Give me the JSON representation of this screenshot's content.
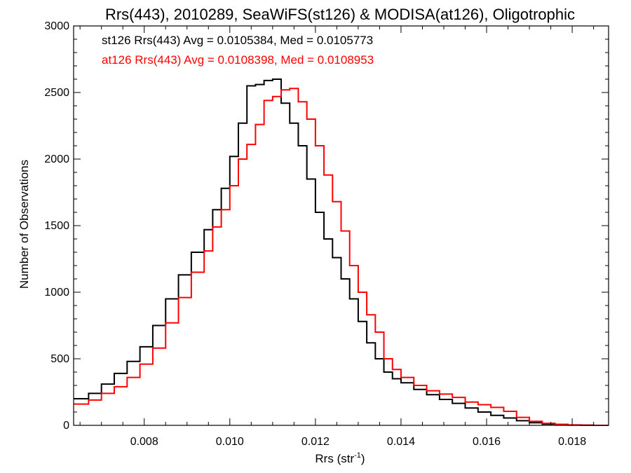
{
  "chart_data": {
    "type": "line",
    "title": "Rrs(443), 2010289, SeaWiFS(st126) & MODISA(at126), Oligotrophic",
    "xlabel": "Rrs (str",
    "xlabel_sup": "-1",
    "xlabel_end": ")",
    "ylabel": "Number of Observations",
    "xlim": [
      0.00635,
      0.01885
    ],
    "ylim": [
      0,
      3000
    ],
    "xticks": [
      0.008,
      0.01,
      0.012,
      0.014,
      0.016,
      0.018
    ],
    "xtick_labels": [
      "0.008",
      "0.010",
      "0.012",
      "0.014",
      "0.016",
      "0.018"
    ],
    "yticks": [
      0,
      500,
      1000,
      1500,
      2000,
      2500,
      3000
    ],
    "ytick_labels": [
      "0",
      "500",
      "1000",
      "1500",
      "2000",
      "2500",
      "3000"
    ],
    "grid": false,
    "step": true,
    "annotations": [
      {
        "text": "st126 Rrs(443) Avg = 0.0105384, Med = 0.0105773",
        "color": "#000000"
      },
      {
        "text": "at126 Rrs(443) Avg = 0.0108398, Med = 0.0108953",
        "color": "#ff0000"
      }
    ],
    "series": [
      {
        "color": "#000000",
        "x": [
          0.00635,
          0.0067,
          0.007,
          0.0073,
          0.0076,
          0.0079,
          0.0082,
          0.0085,
          0.0088,
          0.0091,
          0.0094,
          0.0096,
          0.0098,
          0.01,
          0.0102,
          0.0104,
          0.0106,
          0.0108,
          0.011,
          0.0112,
          0.0114,
          0.0116,
          0.0118,
          0.012,
          0.0122,
          0.0124,
          0.0126,
          0.0128,
          0.013,
          0.0132,
          0.0134,
          0.0136,
          0.0138,
          0.014,
          0.0143,
          0.0146,
          0.0149,
          0.0152,
          0.0155,
          0.0158,
          0.0161,
          0.0164,
          0.0167,
          0.017,
          0.0173,
          0.0176,
          0.0179,
          0.0182,
          0.0185,
          0.01885
        ],
        "y": [
          200,
          240,
          310,
          390,
          480,
          590,
          750,
          950,
          1130,
          1300,
          1470,
          1620,
          1780,
          2020,
          2270,
          2550,
          2560,
          2590,
          2600,
          2420,
          2270,
          2100,
          1850,
          1600,
          1400,
          1260,
          1100,
          950,
          780,
          620,
          500,
          400,
          350,
          320,
          270,
          230,
          195,
          165,
          130,
          100,
          75,
          55,
          35,
          20,
          10,
          5,
          2,
          1,
          0,
          0
        ]
      },
      {
        "color": "#ff0000",
        "x": [
          0.00635,
          0.0067,
          0.007,
          0.0073,
          0.0076,
          0.0079,
          0.0082,
          0.0085,
          0.0088,
          0.0091,
          0.0094,
          0.0096,
          0.0098,
          0.01,
          0.0102,
          0.0104,
          0.0106,
          0.0108,
          0.011,
          0.0112,
          0.0114,
          0.0116,
          0.0118,
          0.012,
          0.0122,
          0.0124,
          0.0126,
          0.0128,
          0.013,
          0.0132,
          0.0134,
          0.0136,
          0.0138,
          0.014,
          0.0143,
          0.0146,
          0.0149,
          0.0152,
          0.0155,
          0.0158,
          0.0161,
          0.0164,
          0.0167,
          0.017,
          0.0173,
          0.0176,
          0.0179,
          0.0182,
          0.0185,
          0.01885
        ],
        "y": [
          160,
          190,
          240,
          290,
          360,
          460,
          580,
          770,
          960,
          1150,
          1310,
          1490,
          1620,
          1800,
          2000,
          2110,
          2260,
          2440,
          2470,
          2520,
          2530,
          2430,
          2300,
          2100,
          1880,
          1680,
          1460,
          1200,
          1000,
          830,
          700,
          500,
          420,
          360,
          300,
          260,
          235,
          210,
          175,
          155,
          135,
          105,
          60,
          30,
          15,
          8,
          3,
          1,
          0,
          0
        ]
      }
    ]
  }
}
